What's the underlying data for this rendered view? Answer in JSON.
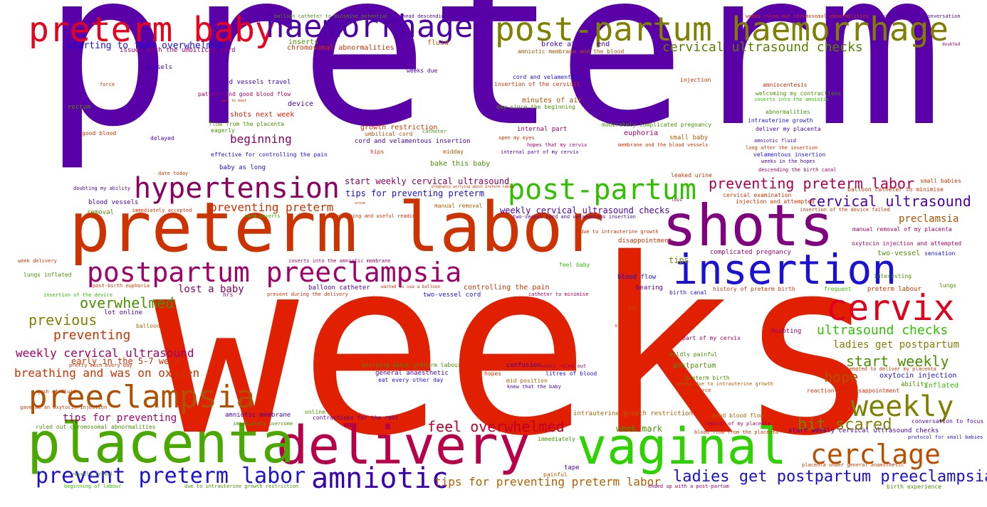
{
  "colors": {
    "background": "#ffffff",
    "purple": "#5a00a8",
    "red": "#e02000",
    "orange_red": "#cc3300",
    "crimson": "#c0104a",
    "green": "#2dd200",
    "olive": "#7f8000",
    "blue": "#1a10d8",
    "magenta": "#8a0090"
  },
  "words": [
    {
      "text": "preterm",
      "color": "#5a00a8"
    },
    {
      "text": "weeks",
      "color": "#e02000"
    },
    {
      "text": "preterm labor",
      "color": "#cc3300"
    },
    {
      "text": "preterm baby",
      "color": "#e8001c"
    },
    {
      "text": "haemorrhage",
      "color": "#4b00a8"
    },
    {
      "text": "post-partum haemorrhage",
      "color": "#7f8000"
    },
    {
      "text": "shots",
      "color": "#800080"
    },
    {
      "text": "insertion",
      "color": "#1a10d8"
    },
    {
      "text": "cervix",
      "color": "#e0001c"
    },
    {
      "text": "delivery",
      "color": "#b8004a"
    },
    {
      "text": "placenta",
      "color": "#4aa800"
    },
    {
      "text": "vaginal",
      "color": "#2dd200"
    },
    {
      "text": "hypertension",
      "color": "#8b0060"
    },
    {
      "text": "post-partum",
      "color": "#30c000"
    },
    {
      "text": "postpartum preeclampsia",
      "color": "#a0006a"
    },
    {
      "text": "preeclampsia",
      "color": "#b05000"
    },
    {
      "text": "weekly",
      "color": "#7f8000"
    },
    {
      "text": "cerclage",
      "color": "#b85000"
    },
    {
      "text": "amniotic",
      "color": "#3a00b0"
    },
    {
      "text": "prevent preterm labor",
      "color": "#1a10d8"
    },
    {
      "text": "ladies get postpartum preeclampsia",
      "color": "#1a10d8"
    },
    {
      "text": "tips for preventing preterm labor",
      "color": "#b06000"
    },
    {
      "text": "feel overwhelmed",
      "color": "#c0002a"
    },
    {
      "text": "bit scared",
      "color": "#7f8000"
    },
    {
      "text": "cervical ultrasound checks",
      "color": "#5a8000"
    },
    {
      "text": "preventing preterm labor",
      "color": "#b0004a"
    },
    {
      "text": "cervical ultrasound",
      "color": "#4b00a8"
    },
    {
      "text": "overwhelmed",
      "color": "#4a9000"
    },
    {
      "text": "previous",
      "color": "#7f8000"
    },
    {
      "text": "preventing",
      "color": "#cc3300"
    },
    {
      "text": "weekly cervical ultrasound",
      "color": "#a0006a"
    },
    {
      "text": "breathing and was on oxygen",
      "color": "#cc3300"
    },
    {
      "text": "ultrasound checks",
      "color": "#30c000"
    },
    {
      "text": "ladies get postpartum",
      "color": "#7f8000"
    },
    {
      "text": "start weekly",
      "color": "#4a9000"
    },
    {
      "text": "hope",
      "color": "#b05000"
    },
    {
      "text": "preclamsia",
      "color": "#b05000"
    },
    {
      "text": "starting to feel overwhelmed",
      "color": "#1a10d8"
    },
    {
      "text": "issues with the umbilical cord",
      "color": "#a0006a"
    },
    {
      "text": "beginning",
      "color": "#8b0060"
    },
    {
      "text": "preventing preterm",
      "color": "#cc3300"
    },
    {
      "text": "lost a baby",
      "color": "#8b0060"
    },
    {
      "text": "tips for preventing",
      "color": "#a0006a"
    },
    {
      "text": "early in the 5-7 week",
      "color": "#cc3300"
    },
    {
      "text": "start weekly cervical ultrasound",
      "color": "#8b0060"
    },
    {
      "text": "tips for preventing preterm",
      "color": "#1a10d8"
    },
    {
      "text": "weekly cervical ultrasound checks",
      "color": "#4b00a8"
    },
    {
      "text": "chromosomal abnormalities",
      "color": "#cc3300"
    },
    {
      "text": "fluid",
      "color": "#b06000"
    },
    {
      "text": "broke at the end",
      "color": "#4b00a8"
    },
    {
      "text": "amniotic membrane and the blood",
      "color": "#b05000"
    },
    {
      "text": "blood vessels travel",
      "color": "#4b00a8"
    },
    {
      "text": "pattern and good blood flow",
      "color": "#a0006a"
    },
    {
      "text": "shots next week",
      "color": "#e02000"
    },
    {
      "text": "flow from the placenta",
      "color": "#4a9000"
    },
    {
      "text": "device",
      "color": "#3a00b0"
    },
    {
      "text": "minutes of air",
      "color": "#b05000"
    },
    {
      "text": "day since the beginning",
      "color": "#4a9000"
    },
    {
      "text": "growth restriction",
      "color": "#cc3300"
    },
    {
      "text": "umbilical cord",
      "color": "#b05000"
    },
    {
      "text": "cord and velamentous insertion",
      "color": "#4b00a8"
    },
    {
      "text": "hips",
      "color": "#cc3300"
    },
    {
      "text": "midday",
      "color": "#b05000"
    },
    {
      "text": "bake this baby",
      "color": "#4a9000"
    },
    {
      "text": "internal part",
      "color": "#a0006a"
    },
    {
      "text": "euphoria",
      "color": "#a0006a"
    },
    {
      "text": "small baby",
      "color": "#b06000"
    },
    {
      "text": "moderately complicated pregnancy",
      "color": "#4a9000"
    },
    {
      "text": "intrauterine growth",
      "color": "#1a10d8"
    },
    {
      "text": "deliver my placenta",
      "color": "#4b00a8"
    },
    {
      "text": "amniocentesis",
      "color": "#cc3300"
    },
    {
      "text": "abnormalities",
      "color": "#4a9000"
    },
    {
      "text": "vessels",
      "color": "#3a00b0"
    },
    {
      "text": "rectum",
      "color": "#4a9000"
    },
    {
      "text": "good blood",
      "color": "#cc3300"
    },
    {
      "text": "delayed",
      "color": "#4b00a8"
    },
    {
      "text": "blood vessels",
      "color": "#4b00a8"
    },
    {
      "text": "removal",
      "color": "#4a9000"
    },
    {
      "text": "blood flow",
      "color": "#1a10d8"
    },
    {
      "text": "bearing",
      "color": "#4b00a8"
    },
    {
      "text": "birth canal",
      "color": "#1a10d8"
    },
    {
      "text": "tips",
      "color": "#7f8000"
    },
    {
      "text": "controlling the pain",
      "color": "#cc3300"
    },
    {
      "text": "two-vessel cord",
      "color": "#1a10d8"
    },
    {
      "text": "balloon catheter",
      "color": "#4b00a8"
    },
    {
      "text": "lot online",
      "color": "#4b00a8"
    },
    {
      "text": "hrs",
      "color": "#a0006a"
    },
    {
      "text": "balloon",
      "color": "#b06000"
    },
    {
      "text": "oxytocin injection",
      "color": "#1a10d8"
    },
    {
      "text": "postpartum",
      "color": "#4a9000"
    },
    {
      "text": "confusion",
      "color": "#4b00a8"
    },
    {
      "text": "general anaesthetic",
      "color": "#4b00a8"
    },
    {
      "text": "eat every other day",
      "color": "#1a10d8"
    },
    {
      "text": "hopes",
      "color": "#cc3300"
    },
    {
      "text": "mid position",
      "color": "#b06000"
    },
    {
      "text": "week mark",
      "color": "#4a9000"
    },
    {
      "text": "amniotic membrane",
      "color": "#4b00a8"
    },
    {
      "text": "contractions for the rest",
      "color": "#4b00a8"
    },
    {
      "text": "online",
      "color": "#4a9000"
    },
    {
      "text": "intrauterine growth restriction",
      "color": "#b06000"
    },
    {
      "text": "good blood flow",
      "color": "#b06000"
    },
    {
      "text": "doubting",
      "color": "#a0006a"
    },
    {
      "text": "preterm birth",
      "color": "#4a9000"
    },
    {
      "text": "start weekly cervical ultrasound checks",
      "color": "#4b00a8"
    },
    {
      "text": "conversation to focus",
      "color": "#4b00a8"
    },
    {
      "text": "protocol for small babies",
      "color": "#1a10d8"
    },
    {
      "text": "ability",
      "color": "#4a9000"
    },
    {
      "text": "inflated",
      "color": "#30c000"
    },
    {
      "text": "frequent",
      "color": "#30c000"
    },
    {
      "text": "preterm labour",
      "color": "#cc3300"
    },
    {
      "text": "lungs",
      "color": "#4a9000"
    },
    {
      "text": "sensation",
      "color": "#1a10d8"
    },
    {
      "text": "two-vessel",
      "color": "#4a9000"
    },
    {
      "text": "injection and attempted",
      "color": "#cc3300"
    },
    {
      "text": "cervical examination",
      "color": "#cc3300"
    },
    {
      "text": "leaked urine",
      "color": "#cc3300"
    },
    {
      "text": "small babies",
      "color": "#cc3300"
    },
    {
      "text": "balloon catheter to minimise",
      "color": "#cc3300"
    },
    {
      "text": "insertion of the device failed",
      "color": "#cc3300"
    },
    {
      "text": "manual removal of my placenta",
      "color": "#a0006a"
    },
    {
      "text": "oxytocin injection and attempted",
      "color": "#a0006a"
    },
    {
      "text": "complicated pregnancy",
      "color": "#a0006a"
    },
    {
      "text": "disappointment",
      "color": "#cc3300"
    },
    {
      "text": "history of preterm birth",
      "color": "#cc3300"
    },
    {
      "text": "part of my cervix",
      "color": "#a0006a"
    },
    {
      "text": "mildly painful",
      "color": "#4a9000"
    },
    {
      "text": "weeks due to intrauterine growth",
      "color": "#b06000"
    },
    {
      "text": "extra force",
      "color": "#cc3300"
    },
    {
      "text": "reaction was disappointment",
      "color": "#cc3300"
    },
    {
      "text": "attempted to deliver my placenta",
      "color": "#cc3300"
    },
    {
      "text": "placenta under general anaesthetic",
      "color": "#cc3300"
    },
    {
      "text": "birth experience",
      "color": "#4a9000"
    },
    {
      "text": "blood flow from the placenta",
      "color": "#cc3300"
    },
    {
      "text": "removal of my placenta",
      "color": "#a0006a"
    },
    {
      "text": "ended up with a post-partum",
      "color": "#a0006a"
    },
    {
      "text": "painful",
      "color": "#b06000"
    },
    {
      "text": "tape",
      "color": "#4b00a8"
    },
    {
      "text": "immediately",
      "color": "#4a9000"
    },
    {
      "text": "knew that the baby",
      "color": "#4b00a8"
    },
    {
      "text": "weeks ruled out",
      "color": "#a0006a"
    },
    {
      "text": "litres of blood",
      "color": "#1a10d8"
    },
    {
      "text": "worrying about preterm labour",
      "color": "#4a9000"
    },
    {
      "text": "ruled out chromosomal abnormalities",
      "color": "#4a9000"
    },
    {
      "text": "immediately overcome",
      "color": "#4a9000"
    },
    {
      "text": "vessels travel",
      "color": "#4a9000"
    },
    {
      "text": "beginning of labour",
      "color": "#30c000"
    },
    {
      "text": "due to intrauterine growth restriction",
      "color": "#4a9000"
    },
    {
      "text": "gave me an oxytocin injection",
      "color": "#cc3300"
    },
    {
      "text": "gush of fluid",
      "color": "#cc3300"
    },
    {
      "text": "pretty much every day",
      "color": "#cc3300"
    },
    {
      "text": "lungs inflated",
      "color": "#4a9000"
    },
    {
      "text": "post-birth euphoria",
      "color": "#cc3300"
    },
    {
      "text": "insertion of the device",
      "color": "#30c000"
    },
    {
      "text": "week delivery",
      "color": "#cc3300"
    },
    {
      "text": "present during the delivery",
      "color": "#cc3300"
    },
    {
      "text": "wanted to use a balloon",
      "color": "#cc3300"
    },
    {
      "text": "feel baby",
      "color": "#30c000"
    },
    {
      "text": "inserts into the amniotic membrane",
      "color": "#a0006a"
    },
    {
      "text": "catheter to minimise",
      "color": "#a0006a"
    },
    {
      "text": "joy",
      "color": "#b06000"
    },
    {
      "text": "start",
      "color": "#cc3300"
    },
    {
      "text": "due to intrauterine growth",
      "color": "#cc3300"
    },
    {
      "text": "interesting and useful reading",
      "color": "#cc3300"
    },
    {
      "text": "cord inserts",
      "color": "#30c000"
    },
    {
      "text": "manual removal",
      "color": "#b06000"
    },
    {
      "text": "two-vessel cord and velamentous insertion",
      "color": "#4b00a8"
    },
    {
      "text": "loss",
      "color": "#a0006a"
    },
    {
      "text": "urine",
      "color": "#cc3300"
    },
    {
      "text": "pregnancy worrying about preterm labour",
      "color": "#cc3300"
    },
    {
      "text": "inserts",
      "color": "#4a9000"
    },
    {
      "text": "immediately accepted",
      "color": "#cc3300"
    },
    {
      "text": "doubting my ability",
      "color": "#4b00a8"
    },
    {
      "text": "date today",
      "color": "#cc3300"
    },
    {
      "text": "baby as long",
      "color": "#1a10d8"
    },
    {
      "text": "effective for controlling the pain",
      "color": "#1a10d8"
    },
    {
      "text": "eagerly",
      "color": "#4a9000"
    },
    {
      "text": "wait to meet",
      "color": "#cc3300"
    },
    {
      "text": "force",
      "color": "#cc3300"
    },
    {
      "text": "weeks due",
      "color": "#4b00a8"
    },
    {
      "text": "balloon catheter to minimise potential",
      "color": "#4a9000"
    },
    {
      "text": "head descending the birth canal",
      "color": "#4b00a8"
    },
    {
      "text": "cord and velamentous",
      "color": "#1a10d8"
    },
    {
      "text": "insertion of the cervidil",
      "color": "#cc3300"
    },
    {
      "text": "catheter",
      "color": "#4a9000"
    },
    {
      "text": "open my eyes",
      "color": "#cc3300"
    },
    {
      "text": "hopes that my cervix",
      "color": "#a0006a"
    },
    {
      "text": "internal part of my cervix",
      "color": "#4b00a8"
    },
    {
      "text": "injection",
      "color": "#cc3300"
    },
    {
      "text": "welcoming my contractions",
      "color": "#4a9000"
    },
    {
      "text": "inserts into the amniotic",
      "color": "#30c000"
    },
    {
      "text": "amniotic fluid",
      "color": "#4b00a8"
    },
    {
      "text": "long after the insertion",
      "color": "#cc3300"
    },
    {
      "text": "velamentous insertion",
      "color": "#1a10d8"
    },
    {
      "text": "weeks in the hopes",
      "color": "#4b00a8"
    },
    {
      "text": "membrane and the blood vessels",
      "color": "#cc3300"
    },
    {
      "text": "descending the birth canal",
      "color": "#a0006a"
    },
    {
      "text": "interesting",
      "color": "#4a9000"
    },
    {
      "text": "weeks ruled out chromosomal abnormalities",
      "color": "#cc3300"
    },
    {
      "text": "withdraw from conversation",
      "color": "#4b00a8"
    },
    {
      "text": "doubted",
      "color": "#a0006a"
    }
  ]
}
